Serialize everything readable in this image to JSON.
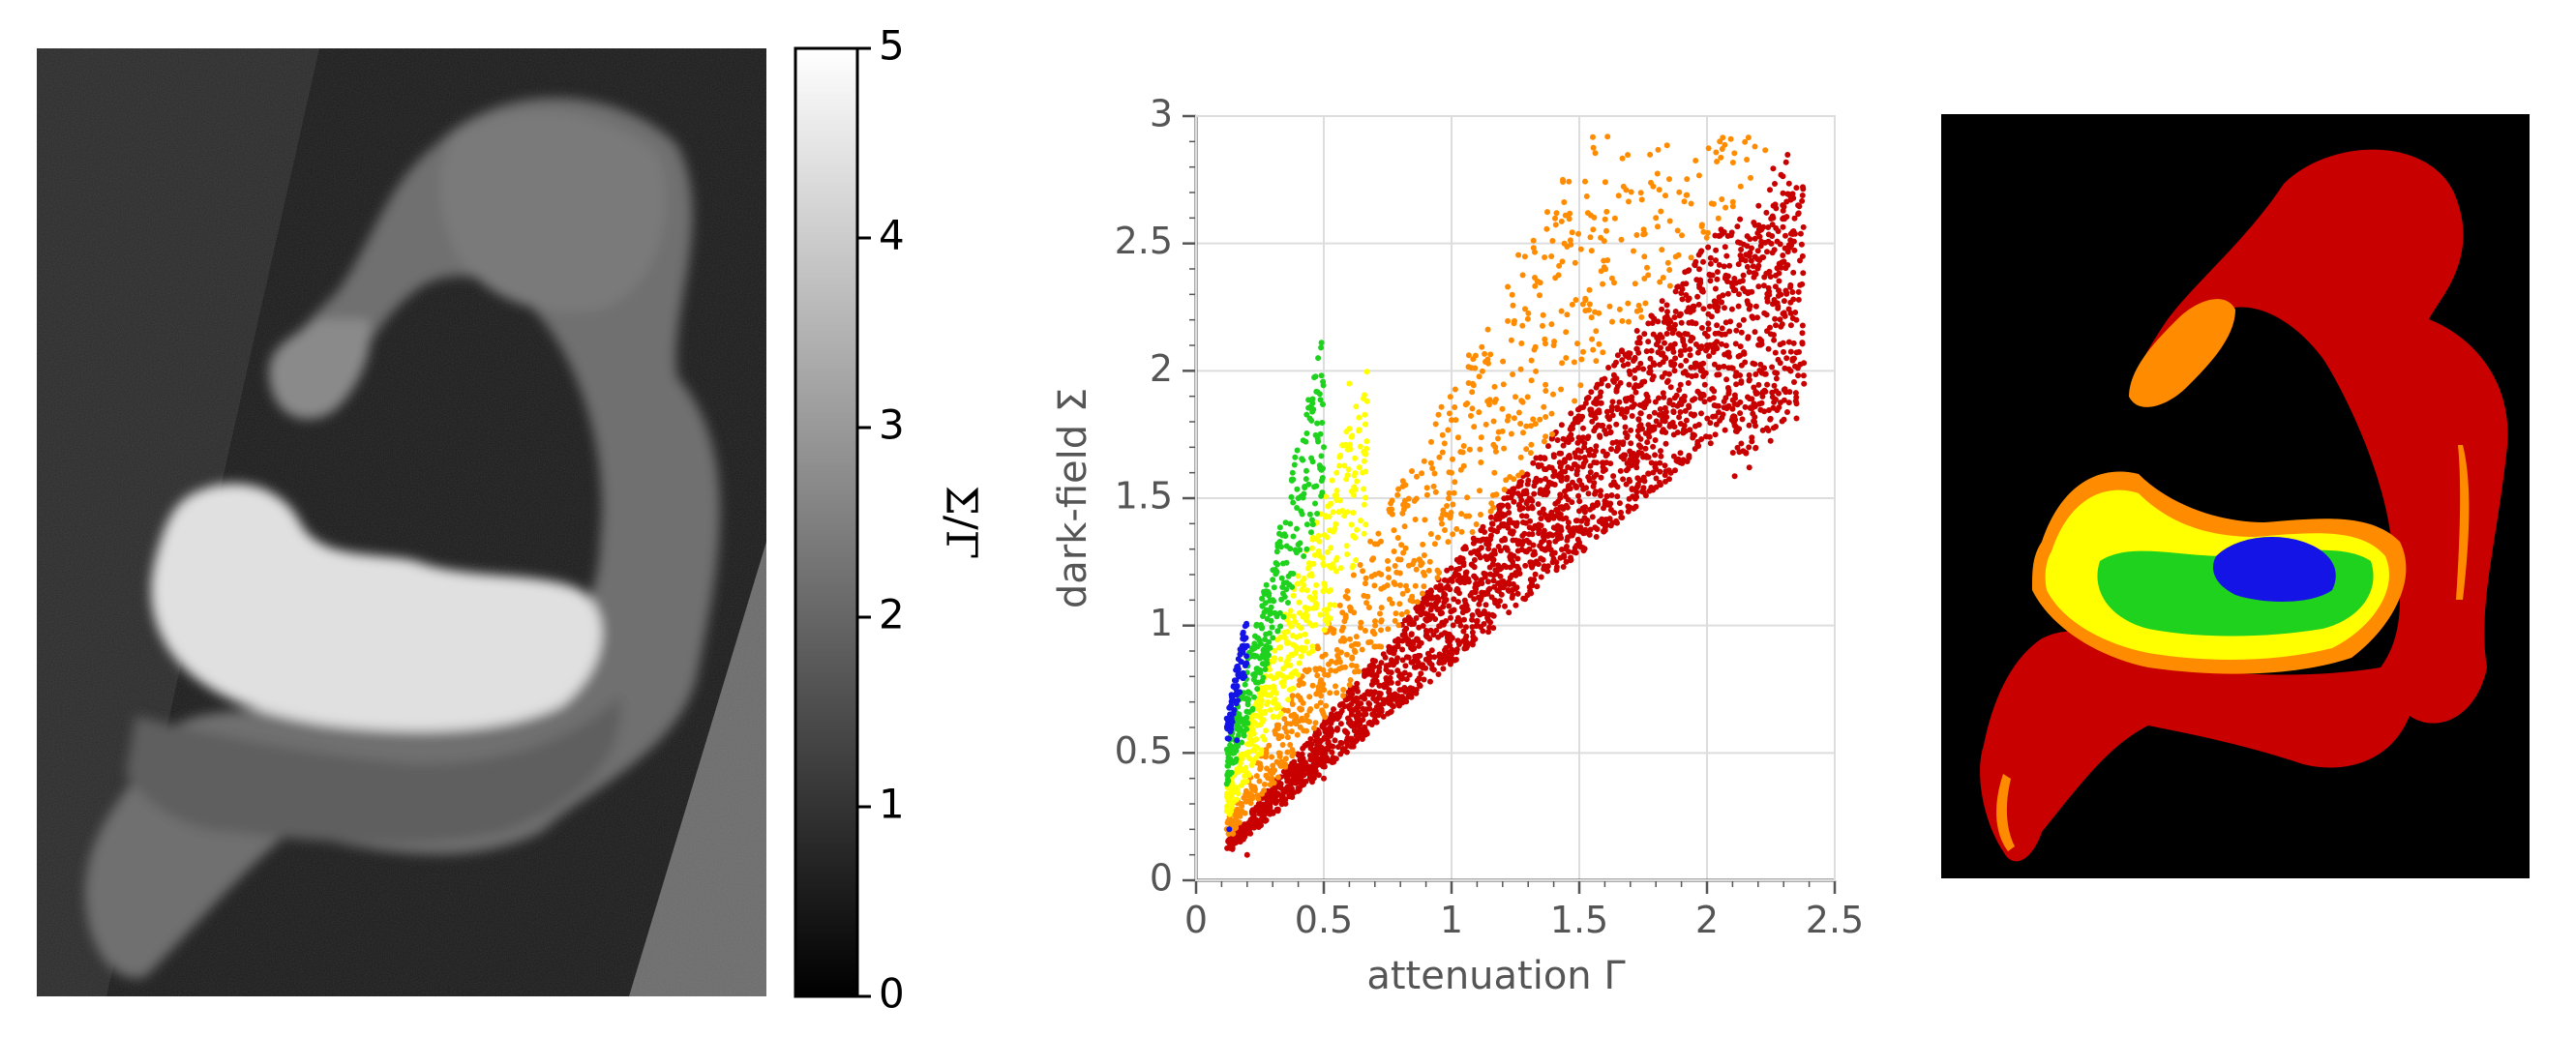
{
  "colors": {
    "blue": "#1414e6",
    "green": "#1ed21e",
    "yellow": "#ffff00",
    "orange": "#ff8c00",
    "red": "#c80000",
    "axis": "#555555",
    "grid": "#dddddd"
  },
  "left_panel": {
    "colorbar": {
      "label": "Σ/Γ",
      "range": [
        0,
        5
      ],
      "ticks": [
        "0",
        "1",
        "2",
        "3",
        "4",
        "5"
      ],
      "colormap": "gray"
    }
  },
  "chart_data": {
    "type": "scatter",
    "xlabel": "attenuation Γ",
    "ylabel": "dark-field Σ",
    "xlim": [
      0,
      2.5
    ],
    "ylim": [
      0,
      3
    ],
    "xticks": [
      "0",
      "0.5",
      "1",
      "1.5",
      "2",
      "2.5"
    ],
    "yticks": [
      "0",
      "0.5",
      "1",
      "1.5",
      "2",
      "2.5",
      "3"
    ],
    "grid": true,
    "series": [
      {
        "color_key": "red",
        "ratio_range": [
          0.85,
          1.25
        ],
        "x_range": [
          0.12,
          2.38
        ],
        "point_count": 2600,
        "sample_points": [
          [
            0.2,
            0.1
          ],
          [
            0.5,
            0.4
          ],
          [
            1.0,
            0.95
          ],
          [
            1.5,
            1.45
          ],
          [
            2.0,
            2.1
          ],
          [
            2.3,
            2.6
          ],
          [
            2.35,
            2.2
          ]
        ]
      },
      {
        "color_key": "orange",
        "ratio_range": [
          1.25,
          1.95
        ],
        "x_range": [
          0.12,
          2.25
        ],
        "point_count": 900,
        "sample_points": [
          [
            0.3,
            0.45
          ],
          [
            0.7,
            1.2
          ],
          [
            1.0,
            1.6
          ],
          [
            1.4,
            2.1
          ],
          [
            1.8,
            2.6
          ],
          [
            2.05,
            2.9
          ]
        ]
      },
      {
        "color_key": "yellow",
        "ratio_range": [
          1.95,
          3.0
        ],
        "x_range": [
          0.12,
          0.67
        ],
        "point_count": 400,
        "sample_points": [
          [
            0.2,
            0.5
          ],
          [
            0.4,
            1.0
          ],
          [
            0.55,
            1.6
          ],
          [
            0.6,
            1.95
          ]
        ]
      },
      {
        "color_key": "green",
        "ratio_range": [
          3.0,
          4.3
        ],
        "x_range": [
          0.12,
          0.5
        ],
        "point_count": 300,
        "sample_points": [
          [
            0.15,
            0.5
          ],
          [
            0.3,
            1.1
          ],
          [
            0.4,
            1.5
          ],
          [
            0.5,
            1.7
          ]
        ]
      },
      {
        "color_key": "blue",
        "ratio_range": [
          4.3,
          5.3
        ],
        "x_range": [
          0.12,
          0.2
        ],
        "point_count": 90,
        "sample_points": [
          [
            0.13,
            0.2
          ],
          [
            0.16,
            0.55
          ],
          [
            0.19,
            0.8
          ]
        ]
      }
    ]
  },
  "right_panel": {
    "classification_classes": [
      "red",
      "orange",
      "yellow",
      "green",
      "blue"
    ],
    "background": "#000000"
  }
}
